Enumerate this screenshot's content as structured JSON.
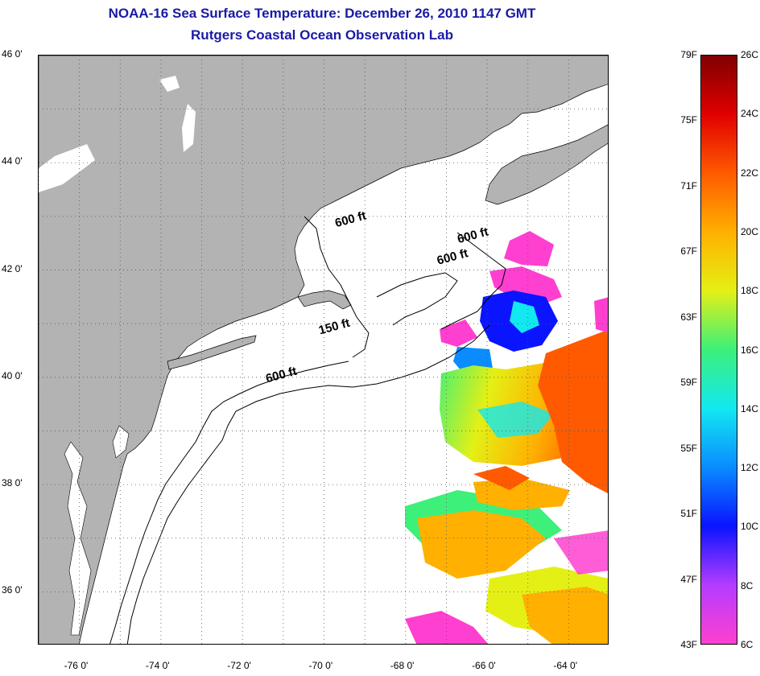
{
  "title": {
    "line1": "NOAA-16 Sea Surface Temperature:  December 26, 2010 1147 GMT",
    "line2": "Rutgers Coastal Ocean Observation Lab"
  },
  "map": {
    "lon_range": [
      -77,
      -63
    ],
    "lat_range": [
      35,
      46
    ],
    "grid": "dotted",
    "lat_ticks": [
      {
        "value": 46,
        "label": "46 0'"
      },
      {
        "value": 44,
        "label": "44 0'"
      },
      {
        "value": 42,
        "label": "42 0'"
      },
      {
        "value": 40,
        "label": "40 0'"
      },
      {
        "value": 38,
        "label": "38 0'"
      },
      {
        "value": 36,
        "label": "36 0'"
      }
    ],
    "lon_ticks": [
      {
        "value": -76,
        "label": "-76 0'"
      },
      {
        "value": -74,
        "label": "-74 0'"
      },
      {
        "value": -72,
        "label": "-72 0'"
      },
      {
        "value": -70,
        "label": "-70 0'"
      },
      {
        "value": -68,
        "label": "-68 0'"
      },
      {
        "value": -66,
        "label": "-66 0'"
      },
      {
        "value": -64,
        "label": "-64 0'"
      }
    ],
    "contour_labels": [
      {
        "text": "600 ft",
        "lon": -69.7,
        "lat": 42.8
      },
      {
        "text": "600 ft",
        "lon": -66.7,
        "lat": 42.5
      },
      {
        "text": "600 ft",
        "lon": -67.2,
        "lat": 42.1
      },
      {
        "text": "150 ft",
        "lon": -70.1,
        "lat": 40.8
      },
      {
        "text": "600 ft",
        "lon": -71.4,
        "lat": 39.9
      }
    ],
    "colors": {
      "land": "#b3b3b3",
      "ocean": "#ffffff"
    }
  },
  "colorbar": {
    "range_c": [
      6,
      26
    ],
    "range_f": [
      43,
      79
    ],
    "labels_f": [
      "79F",
      "75F",
      "71F",
      "67F",
      "63F",
      "59F",
      "55F",
      "51F",
      "47F",
      "43F"
    ],
    "labels_c": [
      "26C",
      "24C",
      "22C",
      "20C",
      "18C",
      "16C",
      "14C",
      "12C",
      "10C",
      "8C",
      "6C"
    ],
    "colors": [
      "#ff3fd0",
      "#b43cff",
      "#0a14ff",
      "#0a8cff",
      "#12e8f0",
      "#3cf07a",
      "#e4f015",
      "#ffb000",
      "#ff5a00",
      "#e00000",
      "#800000"
    ]
  }
}
